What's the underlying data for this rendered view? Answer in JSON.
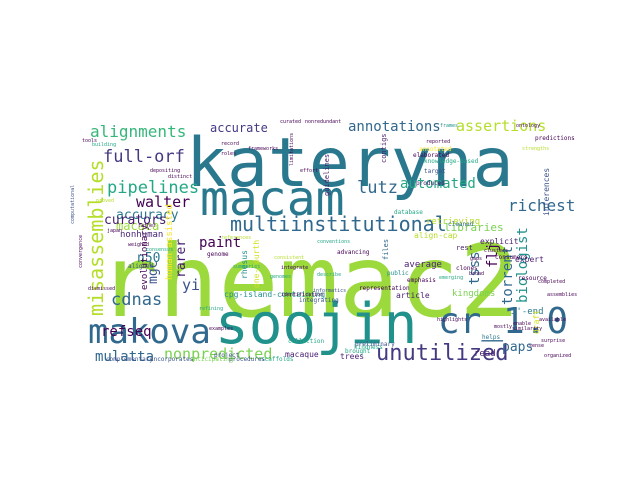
{
  "word_cloud": {
    "palette": {
      "dark_teal": "#2a788e",
      "teal": "#21918c",
      "green": "#35b779",
      "lime": "#7ad151",
      "yellow_green": "#9bd93c",
      "yellow": "#d2e21b",
      "dark_blue": "#31688e",
      "indigo": "#443983",
      "purple": "#440154",
      "violet": "#482878"
    },
    "words": [
      {
        "text": "rhemac2",
        "color": "#9bd93c"
      },
      {
        "text": "kateryna",
        "color": "#2a788e"
      },
      {
        "text": "soojin",
        "color": "#21918c"
      },
      {
        "text": "macam",
        "color": "#2a788e"
      },
      {
        "text": "cr_1.0",
        "color": "#31688e"
      },
      {
        "text": "makova",
        "color": "#31688e"
      },
      {
        "text": "multiinstitutional",
        "color": "#31688e"
      },
      {
        "text": "unutilized",
        "color": "#443983"
      },
      {
        "text": "misassemblies",
        "color": "#b5de2b"
      },
      {
        "text": "alignments",
        "color": "#35b779"
      },
      {
        "text": "pipelines",
        "color": "#22a884"
      },
      {
        "text": "full-orf",
        "color": "#443983"
      },
      {
        "text": "richest",
        "color": "#31688e"
      },
      {
        "text": "assertions",
        "color": "#b5de2b"
      },
      {
        "text": "annotations",
        "color": "#31688e"
      },
      {
        "text": "nonpredicted",
        "color": "#7ad151"
      },
      {
        "text": "lutz",
        "color": "#31688e"
      },
      {
        "text": "walter",
        "color": "#440154"
      },
      {
        "text": "accurate",
        "color": "#443983"
      },
      {
        "text": "accuracy",
        "color": "#2a788e"
      },
      {
        "text": "automated",
        "color": "#22a884"
      },
      {
        "text": "cdnas",
        "color": "#31688e"
      },
      {
        "text": "refseq",
        "color": "#440154"
      },
      {
        "text": "mulatta",
        "color": "#31688e"
      },
      {
        "text": "paps",
        "color": "#31688e"
      },
      {
        "text": "macaca",
        "color": "#9bd93c"
      },
      {
        "text": "curators",
        "color": "#481f70"
      },
      {
        "text": "paint",
        "color": "#440154"
      },
      {
        "text": "torrent",
        "color": "#31688e"
      },
      {
        "text": "biologist",
        "color": "#21918c"
      },
      {
        "text": "flj",
        "color": "#440154"
      },
      {
        "text": "tsss",
        "color": "#31688e"
      },
      {
        "text": "rarer",
        "color": "#481f70"
      },
      {
        "text": "n50",
        "color": "#2a788e"
      },
      {
        "text": "yi",
        "color": "#3b528b"
      },
      {
        "text": "libraries",
        "color": "#7ad151"
      },
      {
        "text": "read",
        "color": "#481f70"
      },
      {
        "text": "average",
        "color": "#481f70"
      },
      {
        "text": "kingdoms",
        "color": "#7ad151"
      },
      {
        "text": "5'-end",
        "color": "#2a788e"
      },
      {
        "text": "cpg-island-containing",
        "color": "#21918c"
      },
      {
        "text": "macaque",
        "color": "#481f70"
      },
      {
        "text": "trees",
        "color": "#481f70"
      },
      {
        "text": "one-fourth",
        "color": "#d2e21b"
      },
      {
        "text": "mgc",
        "color": "#3b528b"
      },
      {
        "text": "evolutionary",
        "color": "#440154"
      },
      {
        "text": "explicit",
        "color": "#481f70"
      },
      {
        "text": "guidelines",
        "color": "#481f70"
      },
      {
        "text": "contigs",
        "color": "#481f70"
      },
      {
        "text": "article",
        "color": "#481f70"
      },
      {
        "text": "nonhuman",
        "color": "#482878"
      },
      {
        "text": "draft",
        "color": "#d2e21b"
      },
      {
        "text": "expert",
        "color": "#481f70"
      },
      {
        "text": "inferences",
        "color": "#3b528b"
      },
      {
        "text": "retrieving",
        "color": "#b5de2b"
      },
      {
        "text": "align-cap",
        "color": "#b5de2b"
      },
      {
        "text": "rhesus",
        "color": "#21918c"
      },
      {
        "text": "cleaned",
        "color": "#31688e"
      },
      {
        "text": "files",
        "color": "#31688e"
      },
      {
        "text": "rest",
        "color": "#481f70"
      },
      {
        "text": "produced",
        "color": "#481f70"
      },
      {
        "text": "human-assisted",
        "color": "#fde725"
      },
      {
        "text": "database",
        "color": "#22a884"
      },
      {
        "text": "elaborated",
        "color": "#440154"
      },
      {
        "text": "genome",
        "color": "#440154"
      },
      {
        "text": "annotated",
        "color": "#fde725"
      },
      {
        "text": "resource",
        "color": "#440154"
      },
      {
        "text": "helps",
        "color": "#2a788e"
      },
      {
        "text": "consumers",
        "color": "#440154"
      },
      {
        "text": "public",
        "color": "#21918c"
      },
      {
        "text": "clones",
        "color": "#440154"
      },
      {
        "text": "kindness",
        "color": "#22a884"
      },
      {
        "text": "brought",
        "color": "#22a884"
      },
      {
        "text": "scaffolds",
        "color": "#22a884"
      },
      {
        "text": "procedures",
        "color": "#3b528b"
      },
      {
        "text": "anticipating",
        "color": "#7ad151"
      },
      {
        "text": "incorporates",
        "color": "#3b528b"
      },
      {
        "text": "project",
        "color": "#3b528b"
      },
      {
        "text": "complementary",
        "color": "#3b528b"
      },
      {
        "text": "aligned",
        "color": "#3b528b"
      },
      {
        "text": "collection",
        "color": "#22a884"
      },
      {
        "text": "preliminary",
        "color": "#3b528b"
      },
      {
        "text": "emphasis",
        "color": "#440154"
      },
      {
        "text": "representation",
        "color": "#440154"
      },
      {
        "text": "advancing",
        "color": "#440154"
      },
      {
        "text": "integrating",
        "color": "#3b528b"
      },
      {
        "text": "curated",
        "color": "#440154"
      },
      {
        "text": "nonredundant",
        "color": "#440154"
      },
      {
        "text": "frames",
        "color": "#21918c"
      },
      {
        "text": "ontology",
        "color": "#440154"
      },
      {
        "text": "computational",
        "color": "#3b528b"
      },
      {
        "text": "knowledge-based",
        "color": "#22a884"
      },
      {
        "text": "target",
        "color": "#3b528b"
      },
      {
        "text": "reported",
        "color": "#440154"
      },
      {
        "text": "predictions",
        "color": "#440154"
      },
      {
        "text": "strengths",
        "color": "#b5de2b"
      },
      {
        "text": "building",
        "color": "#22a884"
      },
      {
        "text": "tools",
        "color": "#440154"
      },
      {
        "text": "record",
        "color": "#440154"
      },
      {
        "text": "frameworks",
        "color": "#440154"
      },
      {
        "text": "roles",
        "color": "#440154"
      },
      {
        "text": "depositing",
        "color": "#440154"
      },
      {
        "text": "distinct",
        "color": "#440154"
      },
      {
        "text": "proved",
        "color": "#b5de2b"
      },
      {
        "text": "rather",
        "color": "#440154"
      },
      {
        "text": "japan",
        "color": "#440154"
      },
      {
        "text": "weighed",
        "color": "#440154"
      },
      {
        "text": "consensus",
        "color": "#22a884"
      },
      {
        "text": "limitations",
        "color": "#440154"
      },
      {
        "text": "effort",
        "color": "#440154"
      },
      {
        "text": "gaps",
        "color": "#440154"
      },
      {
        "text": "clusters",
        "color": "#440154"
      },
      {
        "text": "emerging",
        "color": "#22a884"
      },
      {
        "text": "organized",
        "color": "#440154"
      },
      {
        "text": "available",
        "color": "#440154"
      },
      {
        "text": "completed",
        "color": "#440154"
      },
      {
        "text": "broad",
        "color": "#440154"
      },
      {
        "text": "assemblies",
        "color": "#440154"
      },
      {
        "text": "surprise",
        "color": "#440154"
      },
      {
        "text": "sense",
        "color": "#440154"
      },
      {
        "text": "similarity",
        "color": "#440154"
      },
      {
        "text": "mostly",
        "color": "#440154"
      },
      {
        "text": "enable",
        "color": "#440154"
      },
      {
        "text": "examples",
        "color": "#440154"
      },
      {
        "text": "refining",
        "color": "#22a884"
      },
      {
        "text": "summaries",
        "color": "#22a884"
      },
      {
        "text": "references",
        "color": "#b5de2b"
      },
      {
        "text": "conventions",
        "color": "#22a884"
      },
      {
        "text": "integrate",
        "color": "#440154"
      },
      {
        "text": "consistent",
        "color": "#b5de2b"
      },
      {
        "text": "genomes",
        "color": "#22a884"
      },
      {
        "text": "describe",
        "color": "#22a884"
      },
      {
        "text": "highlights",
        "color": "#440154"
      },
      {
        "text": "informatics",
        "color": "#3b528b"
      },
      {
        "text": "identification",
        "color": "#440154"
      },
      {
        "text": "dismissed",
        "color": "#440154"
      },
      {
        "text": "convergence",
        "color": "#440154"
      },
      {
        "text": "discovery",
        "color": "#440154"
      },
      {
        "text": "distribution",
        "color": "#440154"
      }
    ]
  }
}
